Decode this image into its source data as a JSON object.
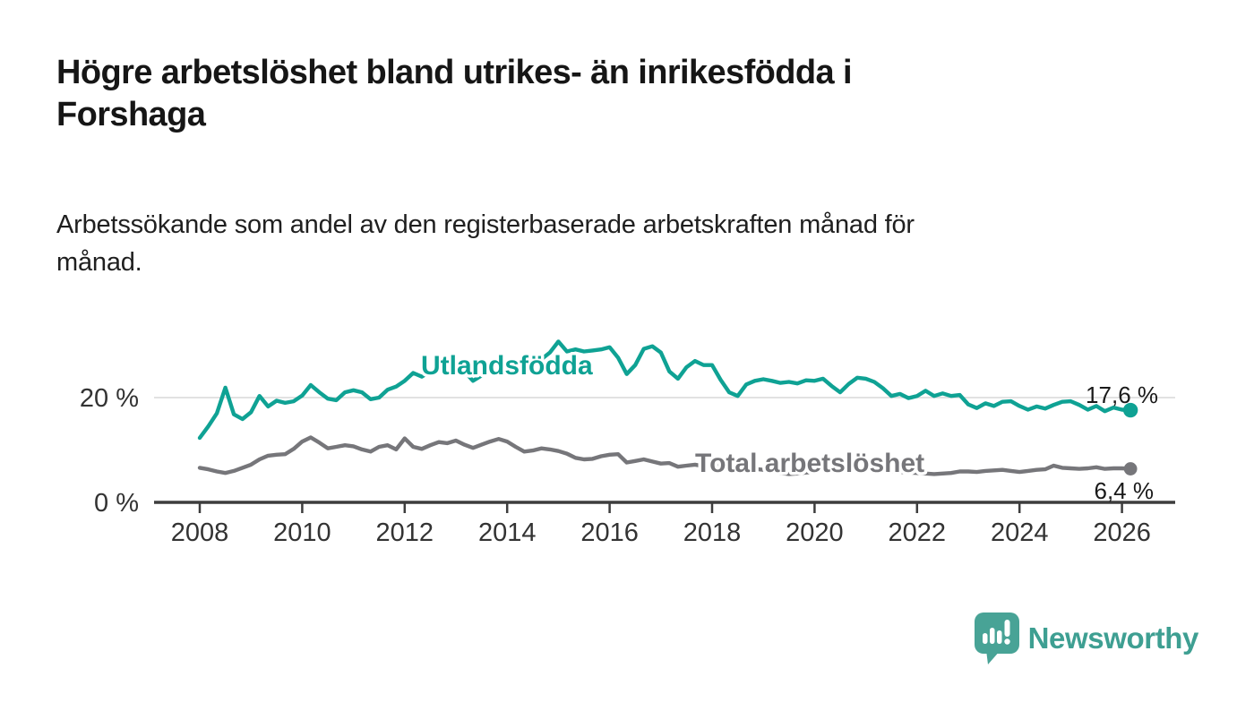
{
  "header": {
    "title_lines": [
      "Högre arbetslöshet bland utrikes- än inrikesfödda i",
      "Forshaga"
    ],
    "subtitle_lines": [
      "Arbetssökande som andel av den registerbaserade arbetskraften månad för",
      "månad."
    ]
  },
  "footer": {
    "brand": "Newsworthy",
    "logo_color": "#48a396",
    "logo_icon": "speech-bubble-bar-chart-exclamation"
  },
  "colors": {
    "accent_teal": "#0fa294",
    "series_gray": "#76767a",
    "axis_text": "#333333",
    "axis_line": "#3d3d3d",
    "grid_line": "#d8d8d8",
    "annotation_text": "#1a1a1a"
  },
  "chart_data": {
    "type": "line",
    "title": "Högre arbetslöshet bland utrikes- än inrikesfödda i Forshaga",
    "subtitle": "Arbetssökande som andel av den registerbaserade arbetskraften månad för månad.",
    "unit": "%",
    "x_start": 2008.0,
    "x_step_months": 2,
    "x_ticks": [
      2008,
      2010,
      2012,
      2014,
      2016,
      2018,
      2020,
      2022,
      2024,
      2026
    ],
    "y_ticks": [
      {
        "value": 20,
        "label": "20 %"
      },
      {
        "value": 0,
        "label": "0 %"
      }
    ],
    "ylim": [
      0,
      31
    ],
    "xlim": [
      2007.1,
      2027.0
    ],
    "grid": "horizontal-only",
    "legend_position": "inline-labels",
    "series": [
      {
        "name": "Utlandsfödda",
        "color": "#0fa294",
        "end_value": 17.6,
        "end_label": "17,6 %",
        "values": [
          12.3,
          14.5,
          17.0,
          21.9,
          16.8,
          15.9,
          17.2,
          20.3,
          18.3,
          19.4,
          19.0,
          19.3,
          20.4,
          22.4,
          21.0,
          19.8,
          19.5,
          21.0,
          21.4,
          21.0,
          19.7,
          20.0,
          21.5,
          22.1,
          23.2,
          24.7,
          24.0,
          25.0,
          25.2,
          25.8,
          26.2,
          25.0,
          23.2,
          24.2,
          25.0,
          25.7,
          26.1,
          26.3,
          26.1,
          26.4,
          27.3,
          28.6,
          30.7,
          28.8,
          29.2,
          28.8,
          29.0,
          29.2,
          29.6,
          27.6,
          24.5,
          26.2,
          29.3,
          29.8,
          28.6,
          25.0,
          23.6,
          25.8,
          27.0,
          26.2,
          26.2,
          23.4,
          21.0,
          20.3,
          22.5,
          23.2,
          23.5,
          23.2,
          22.8,
          23.0,
          22.7,
          23.3,
          23.2,
          23.6,
          22.2,
          21.0,
          22.6,
          23.8,
          23.6,
          23.0,
          21.8,
          20.3,
          20.7,
          19.9,
          20.3,
          21.3,
          20.3,
          20.8,
          20.3,
          20.5,
          18.7,
          18.0,
          18.9,
          18.4,
          19.2,
          19.3,
          18.4,
          17.7,
          18.3,
          17.9,
          18.6,
          19.2,
          19.3,
          18.6,
          17.7,
          18.4,
          17.4,
          18.1,
          17.7,
          17.6
        ]
      },
      {
        "name": "Total arbetslöshet",
        "color": "#76767a",
        "end_value": 6.4,
        "end_label": "6,4 %",
        "values": [
          6.6,
          6.3,
          5.9,
          5.6,
          6.0,
          6.6,
          7.2,
          8.2,
          8.9,
          9.1,
          9.2,
          10.2,
          11.6,
          12.4,
          11.4,
          10.3,
          10.6,
          10.9,
          10.7,
          10.1,
          9.7,
          10.6,
          10.9,
          10.1,
          12.2,
          10.6,
          10.2,
          10.9,
          11.5,
          11.3,
          11.8,
          11.0,
          10.4,
          11.0,
          11.6,
          12.1,
          11.6,
          10.6,
          9.7,
          9.9,
          10.3,
          10.1,
          9.8,
          9.3,
          8.5,
          8.2,
          8.3,
          8.8,
          9.1,
          9.2,
          7.6,
          7.9,
          8.2,
          7.8,
          7.4,
          7.5,
          6.8,
          7.0,
          7.2,
          6.9,
          7.3,
          6.9,
          6.5,
          6.3,
          6.6,
          6.4,
          6.2,
          5.9,
          5.6,
          5.4,
          5.5,
          5.7,
          5.8,
          6.2,
          6.8,
          6.7,
          6.5,
          6.4,
          6.5,
          6.3,
          6.1,
          5.9,
          5.8,
          5.7,
          5.6,
          5.5,
          5.4,
          5.5,
          5.6,
          5.9,
          5.9,
          5.8,
          6.0,
          6.1,
          6.2,
          6.0,
          5.8,
          6.0,
          6.2,
          6.3,
          7.0,
          6.6,
          6.5,
          6.4,
          6.5,
          6.7,
          6.4,
          6.5,
          6.5,
          6.4
        ]
      }
    ]
  }
}
